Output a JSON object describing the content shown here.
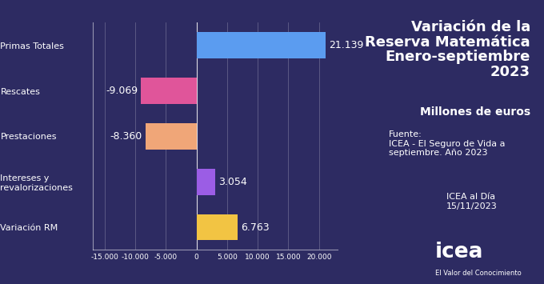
{
  "chart_data": {
    "type": "bar",
    "orientation": "horizontal",
    "title": "Variación de la Reserva Matemática Enero-septiembre 2023",
    "subtitle": "Millones de euros",
    "categories": [
      "Primas Totales",
      "Rescates",
      "Prestaciones",
      "Intereses y revalorizaciones",
      "Variación RM"
    ],
    "values": [
      21139,
      -9069,
      -8360,
      3054,
      6763
    ],
    "value_labels": [
      "21.139",
      "-9.069",
      "-8.360",
      "3.054",
      "6.763"
    ],
    "colors": [
      "#5b9cf0",
      "#e0559a",
      "#f0a678",
      "#9b5de5",
      "#f2c443"
    ],
    "data_labels": true,
    "grid": true,
    "xlim": [
      -17000,
      23000
    ],
    "xticks": [
      {
        "value": -15000,
        "label": "-15.000"
      },
      {
        "value": -10000,
        "label": "-10.000"
      },
      {
        "value": -5000,
        "label": "-5.000"
      },
      0,
      {
        "value": 5000,
        "label": "5.000"
      },
      {
        "value": 10000,
        "label": "10.000"
      },
      {
        "value": 15000,
        "label": "15.000"
      },
      {
        "value": 20000,
        "label": "20.000"
      }
    ],
    "annotations": [
      "Fuente:",
      "ICEA - El Seguro de Vida a septiembre. Año 2023",
      "ICEA al Día",
      "15/11/2023",
      "icea",
      "El Valor del Conocimiento"
    ]
  }
}
